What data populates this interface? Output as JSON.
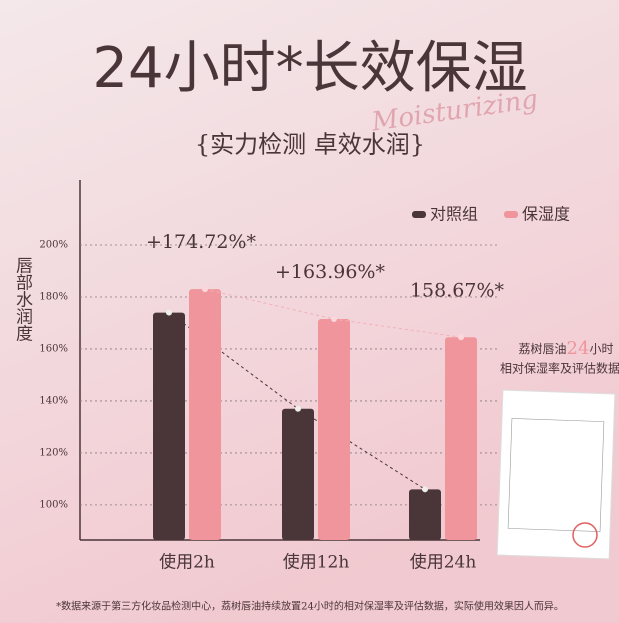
{
  "chart_data": {
    "type": "bar",
    "title": "24小时*长效保湿",
    "subtitle": "{实力检测 卓效水润}",
    "decoration": "Moisturizing",
    "y_label": "唇部水润度",
    "categories": [
      "使用2h",
      "使用12h",
      "使用24h"
    ],
    "series": [
      {
        "name": "对照组",
        "color": "#4a3538",
        "values": [
          174,
          137,
          106
        ]
      },
      {
        "name": "保湿度",
        "color": "#f0959c",
        "values": [
          183,
          171.5,
          164.5
        ]
      }
    ],
    "annotations": [
      "+174.72%*",
      "+163.96%*",
      "158.67%*"
    ],
    "ylim": [
      86.5,
      225
    ],
    "yticks": [
      {
        "value": 100,
        "label": "100%"
      },
      {
        "value": 120,
        "label": "120%"
      },
      {
        "value": 140,
        "label": "140%"
      },
      {
        "value": 160,
        "label": "160%"
      },
      {
        "value": 180,
        "label": "180%"
      },
      {
        "value": 200,
        "label": "200%"
      }
    ],
    "grid": true,
    "legend": "top-right",
    "note": [
      "荔树唇油",
      "24",
      "小时"
    ],
    "note2": "相对保湿率及评估数据",
    "footnote": "*数据来源于第三方化妆品检测中心，荔树唇油持续放置24小时的相对保湿率及评估数据，实际使用效果因人而异。"
  }
}
